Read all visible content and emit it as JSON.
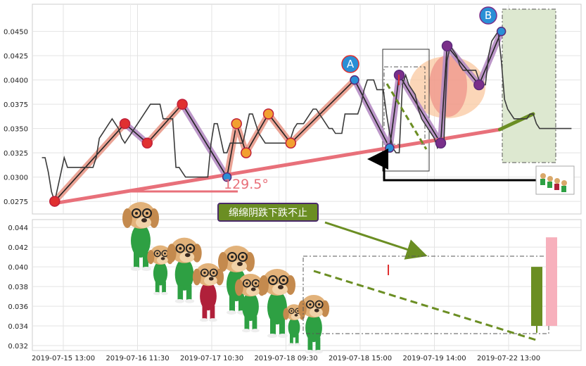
{
  "colors": {
    "price": "#3a3a3a",
    "trend": "#e8707a",
    "trend_green": "#6b8e23",
    "wave_pink": "#e89a8a",
    "wave_purple": "#b58cc4",
    "marker_red": "#e03030",
    "marker_orange": "#f2a030",
    "marker_purple": "#7a2f8a",
    "marker_blue": "#2a8fd6",
    "candle_green": "#6b8e23",
    "candle_pink": "#f7b0bc",
    "callout_bg": "#6b8e23",
    "callout_border": "#4a2a6a",
    "ellipse_orange": "#f9c8a0",
    "ellipse_red": "#ee9088",
    "box_green": "#dde8d0"
  },
  "callout": {
    "text": "绵绵阴跌下跌不止"
  },
  "angle_label": "129.5°",
  "wave_labels": {
    "a": "A",
    "b": "B"
  },
  "legend_icon": "dog-mascot-icon",
  "chart_data": [
    {
      "type": "line",
      "panel": "main",
      "ylim": [
        0.0262,
        0.0478
      ],
      "yticks": [
        0.0275,
        0.03,
        0.0325,
        0.035,
        0.0375,
        0.04,
        0.0425,
        0.045
      ],
      "ytick_labels": [
        "0.0275",
        "0.0300",
        "0.0325",
        "0.0350",
        "0.0375",
        "0.0400",
        "0.0425",
        "0.0450"
      ],
      "x_index_range": [
        -3,
        169
      ],
      "grid": true,
      "series": [
        {
          "values": [
            0.032,
            0.032,
            0.0305,
            0.0285,
            0.0275,
            0.029,
            0.0305,
            0.032,
            0.031,
            0.031,
            0.031,
            0.031,
            0.031,
            0.031,
            0.031,
            0.031,
            0.031,
            0.032,
            0.034,
            0.0345,
            0.035,
            0.0355,
            0.036,
            0.0355,
            0.035,
            0.034,
            0.0335,
            0.034,
            0.0345,
            0.035,
            0.0355,
            0.036,
            0.0365,
            0.037,
            0.0375,
            0.0375,
            0.0375,
            0.0375,
            0.036,
            0.036,
            0.036,
            0.036,
            0.031,
            0.031,
            0.0305,
            0.03,
            0.03,
            0.03,
            0.03,
            0.03,
            0.03,
            0.03,
            0.03,
            0.0335,
            0.0355,
            0.0355,
            0.034,
            0.0325,
            0.0325,
            0.0335,
            0.0335,
            0.0335,
            0.0335,
            0.0335,
            0.035,
            0.0365,
            0.0365,
            0.0355,
            0.0345,
            0.034,
            0.0335,
            0.0335,
            0.0335,
            0.0335,
            0.0335,
            0.0335,
            0.0335,
            0.0335,
            0.034,
            0.035,
            0.0355,
            0.0355,
            0.0355,
            0.036,
            0.0365,
            0.037,
            0.037,
            0.0365,
            0.036,
            0.0355,
            0.035,
            0.035,
            0.0345,
            0.0345,
            0.0345,
            0.0365,
            0.0365,
            0.0365,
            0.0365,
            0.0365,
            0.0375,
            0.039,
            0.04,
            0.04,
            0.04,
            0.039,
            0.039,
            0.039,
            0.0365,
            0.0345,
            0.033,
            0.0325,
            0.0325,
            0.0395,
            0.0405,
            0.0395,
            0.039,
            0.0385,
            0.037,
            0.036,
            0.0355,
            0.035,
            0.0345,
            0.034,
            0.033,
            0.0335,
            0.0335,
            0.042,
            0.0435,
            0.043,
            0.0425,
            0.0415,
            0.041,
            0.041,
            0.041,
            0.041,
            0.041,
            0.04,
            0.0395,
            0.0395,
            0.0425,
            0.044,
            0.0445,
            0.045,
            0.042,
            0.038,
            0.037,
            0.0365,
            0.036,
            0.036,
            0.036,
            0.036,
            0.036,
            0.0365,
            0.0365,
            0.0355,
            0.035,
            0.035,
            0.035,
            0.035,
            0.035,
            0.035,
            0.035,
            0.035,
            0.035,
            0.035,
            0.035
          ]
        }
      ],
      "wave_points": [
        [
          4,
          0.0275,
          "red"
        ],
        [
          26,
          0.0355,
          "red"
        ],
        [
          33,
          0.0335,
          "red"
        ],
        [
          44,
          0.0375,
          "red"
        ],
        [
          58,
          0.03,
          "blue"
        ],
        [
          61,
          0.0355,
          "orange"
        ],
        [
          64,
          0.0325,
          "orange"
        ],
        [
          71,
          0.0365,
          "orange"
        ],
        [
          78,
          0.0335,
          "orange"
        ],
        [
          98,
          0.04,
          "blue"
        ],
        [
          109,
          0.033,
          "blue"
        ],
        [
          112,
          0.0405,
          "purple"
        ],
        [
          125,
          0.0335,
          "purple"
        ],
        [
          127,
          0.0435,
          "purple"
        ],
        [
          137,
          0.0395,
          "purple"
        ],
        [
          144,
          0.045,
          "blue"
        ]
      ],
      "trend_line": {
        "from": [
          4,
          0.0273
        ],
        "to": [
          154,
          0.0365
        ]
      },
      "angle_label": "129.5°"
    },
    {
      "type": "bar",
      "panel": "lower",
      "ylim": [
        0.0315,
        0.0448
      ],
      "yticks": [
        0.032,
        0.034,
        0.036,
        0.038,
        0.04,
        0.042,
        0.044
      ],
      "ytick_labels": [
        "0.032",
        "0.034",
        "0.036",
        "0.038",
        "0.040",
        "0.042",
        "0.044"
      ],
      "x_categories": [
        "2019-07-15 13:00",
        "2019-07-16 11:30",
        "2019-07-17 10:30",
        "2019-07-18 09:30",
        "2019-07-18 15:00",
        "2019-07-19 14:00",
        "2019-07-22 13:00"
      ],
      "grid": true,
      "candles": [
        {
          "color": "green",
          "open": 0.04,
          "close": 0.034
        },
        {
          "color": "pink",
          "open": 0.034,
          "close": 0.043
        }
      ],
      "dashed_trend": {
        "from": 0.0394,
        "to": 0.0325
      }
    }
  ]
}
